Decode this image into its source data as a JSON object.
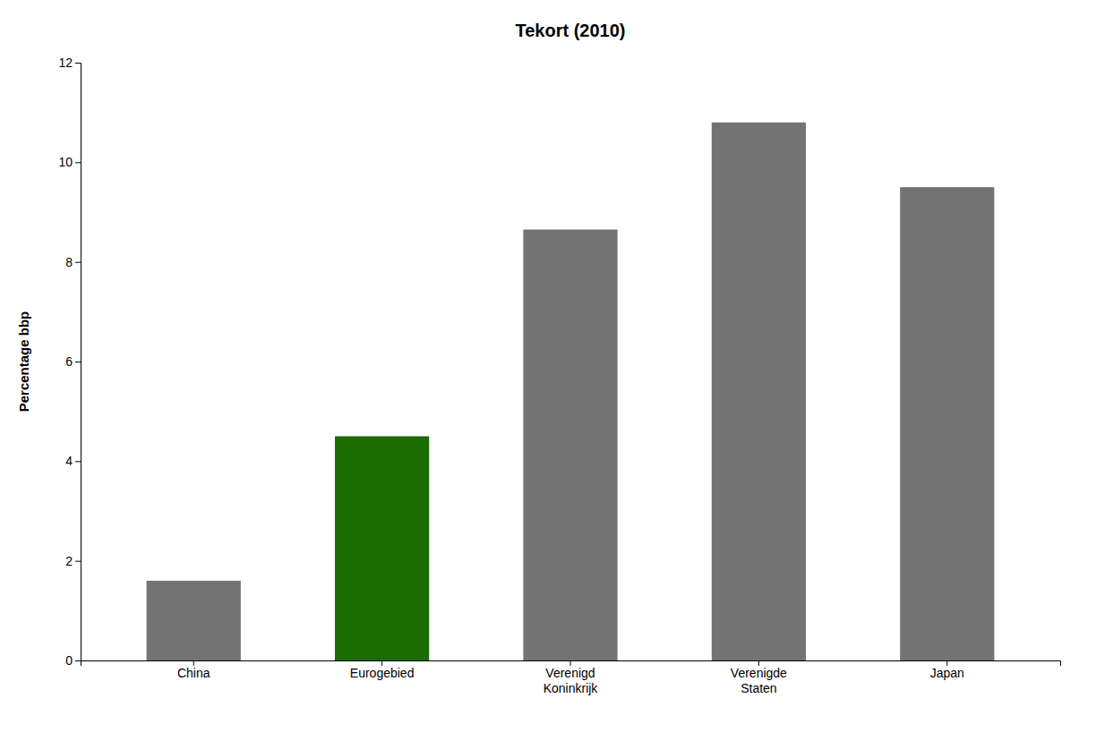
{
  "chart_data": {
    "type": "bar",
    "title": "Tekort (2010)",
    "categories": [
      "China",
      "Eurogebied",
      "Verenigd\nKoninkrijk",
      "Verenigde\nStaten",
      "Japan"
    ],
    "values": [
      1.6,
      4.5,
      8.65,
      10.8,
      9.5
    ],
    "colors": [
      "#737373",
      "#1a6b00",
      "#737373",
      "#737373",
      "#737373"
    ],
    "ylabel": "Percentage bbp",
    "ylim": [
      0,
      12
    ],
    "yticks": [
      0,
      2,
      4,
      6,
      8,
      10,
      12
    ],
    "grid": false
  }
}
